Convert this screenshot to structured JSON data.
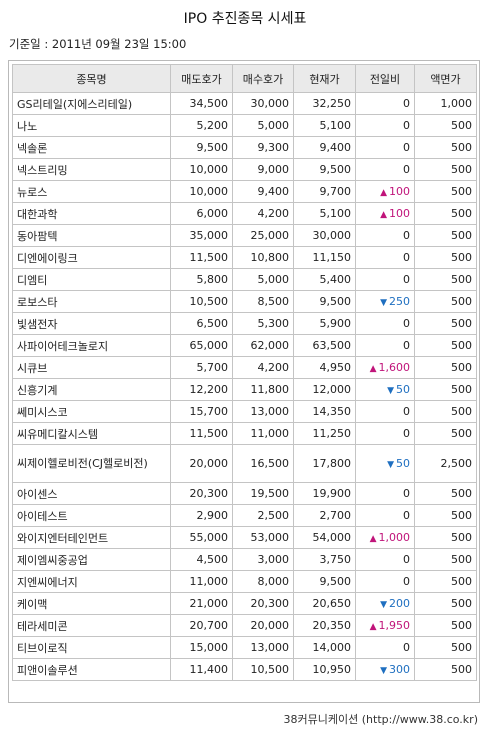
{
  "title": "IPO 추진종목 시세표",
  "base_date": "기준일 : 2011년 09월 23일 15:00",
  "headers": [
    "종목명",
    "매도호가",
    "매수호가",
    "현재가",
    "전일비",
    "액면가"
  ],
  "rows": [
    {
      "name": "GS리테일(지에스리테일)",
      "sell": "34,500",
      "buy": "30,000",
      "price": "32,250",
      "change": "0",
      "dir": "",
      "face": "1,000"
    },
    {
      "name": "나노",
      "sell": "5,200",
      "buy": "5,000",
      "price": "5,100",
      "change": "0",
      "dir": "",
      "face": "500"
    },
    {
      "name": "넥솔론",
      "sell": "9,500",
      "buy": "9,300",
      "price": "9,400",
      "change": "0",
      "dir": "",
      "face": "500"
    },
    {
      "name": "넥스트리밍",
      "sell": "10,000",
      "buy": "9,000",
      "price": "9,500",
      "change": "0",
      "dir": "",
      "face": "500"
    },
    {
      "name": "뉴로스",
      "sell": "10,000",
      "buy": "9,400",
      "price": "9,700",
      "change": "100",
      "dir": "up",
      "face": "500"
    },
    {
      "name": "대한과학",
      "sell": "6,000",
      "buy": "4,200",
      "price": "5,100",
      "change": "100",
      "dir": "up",
      "face": "500"
    },
    {
      "name": "동아팜텍",
      "sell": "35,000",
      "buy": "25,000",
      "price": "30,000",
      "change": "0",
      "dir": "",
      "face": "500"
    },
    {
      "name": "디엔에이링크",
      "sell": "11,500",
      "buy": "10,800",
      "price": "11,150",
      "change": "0",
      "dir": "",
      "face": "500"
    },
    {
      "name": "디엠티",
      "sell": "5,800",
      "buy": "5,000",
      "price": "5,400",
      "change": "0",
      "dir": "",
      "face": "500"
    },
    {
      "name": "로보스타",
      "sell": "10,500",
      "buy": "8,500",
      "price": "9,500",
      "change": "250",
      "dir": "down",
      "face": "500"
    },
    {
      "name": "빛샘전자",
      "sell": "6,500",
      "buy": "5,300",
      "price": "5,900",
      "change": "0",
      "dir": "",
      "face": "500"
    },
    {
      "name": "사파이어테크놀로지",
      "sell": "65,000",
      "buy": "62,000",
      "price": "63,500",
      "change": "0",
      "dir": "",
      "face": "500"
    },
    {
      "name": "시큐브",
      "sell": "5,700",
      "buy": "4,200",
      "price": "4,950",
      "change": "1,600",
      "dir": "up",
      "face": "500"
    },
    {
      "name": "신흥기계",
      "sell": "12,200",
      "buy": "11,800",
      "price": "12,000",
      "change": "50",
      "dir": "down",
      "face": "500"
    },
    {
      "name": "쎄미시스코",
      "sell": "15,700",
      "buy": "13,000",
      "price": "14,350",
      "change": "0",
      "dir": "",
      "face": "500"
    },
    {
      "name": "씨유메디칼시스템",
      "sell": "11,500",
      "buy": "11,000",
      "price": "11,250",
      "change": "0",
      "dir": "",
      "face": "500"
    },
    {
      "name": "씨제이헬로비전(CJ헬로비전)",
      "sell": "20,000",
      "buy": "16,500",
      "price": "17,800",
      "change": "50",
      "dir": "down",
      "face": "2,500",
      "tall": true
    },
    {
      "name": "아이센스",
      "sell": "20,300",
      "buy": "19,500",
      "price": "19,900",
      "change": "0",
      "dir": "",
      "face": "500"
    },
    {
      "name": "아이테스트",
      "sell": "2,900",
      "buy": "2,500",
      "price": "2,700",
      "change": "0",
      "dir": "",
      "face": "500"
    },
    {
      "name": "와이지엔터테인먼트",
      "sell": "55,000",
      "buy": "53,000",
      "price": "54,000",
      "change": "1,000",
      "dir": "up",
      "face": "500"
    },
    {
      "name": "제이엠씨중공업",
      "sell": "4,500",
      "buy": "3,000",
      "price": "3,750",
      "change": "0",
      "dir": "",
      "face": "500"
    },
    {
      "name": "지엔씨에너지",
      "sell": "11,000",
      "buy": "8,000",
      "price": "9,500",
      "change": "0",
      "dir": "",
      "face": "500"
    },
    {
      "name": "케이맥",
      "sell": "21,000",
      "buy": "20,300",
      "price": "20,650",
      "change": "200",
      "dir": "down",
      "face": "500"
    },
    {
      "name": "테라세미콘",
      "sell": "20,700",
      "buy": "20,000",
      "price": "20,350",
      "change": "1,950",
      "dir": "up",
      "face": "500"
    },
    {
      "name": "티브이로직",
      "sell": "15,000",
      "buy": "13,000",
      "price": "14,000",
      "change": "0",
      "dir": "",
      "face": "500"
    },
    {
      "name": "피앤이솔루션",
      "sell": "11,400",
      "buy": "10,500",
      "price": "10,950",
      "change": "300",
      "dir": "down",
      "face": "500"
    }
  ],
  "colors": {
    "up": "#c0147a",
    "down": "#1f6fc0",
    "header_bg": "#eaeaea"
  },
  "icons": {
    "up": "triangle-up-icon",
    "down": "triangle-down-icon"
  },
  "source": "38커뮤니케이션 (http://www.38.co.kr)"
}
